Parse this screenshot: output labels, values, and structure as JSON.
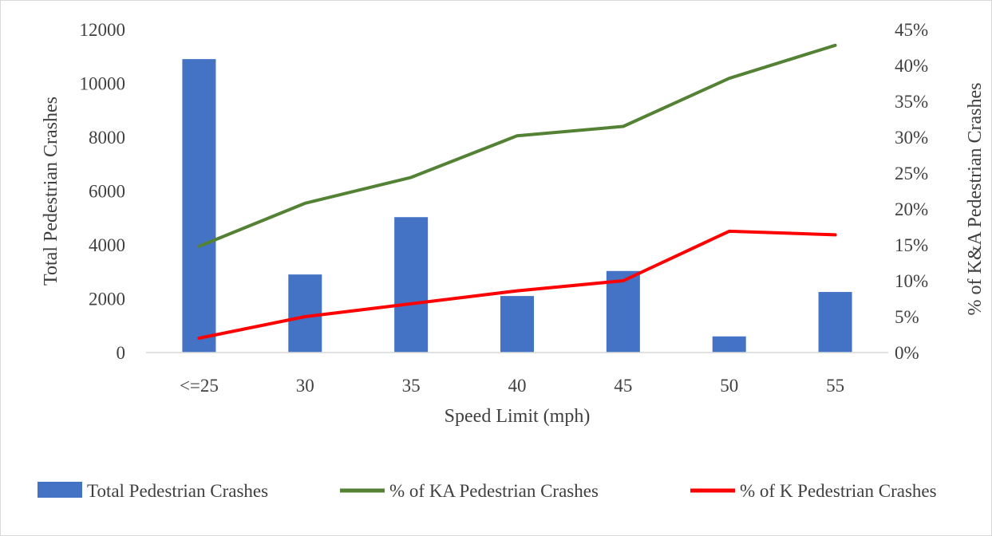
{
  "chart_data": {
    "type": "bar",
    "categories": [
      "<=25",
      "30",
      "35",
      "40",
      "45",
      "50",
      "55"
    ],
    "xlabel": "Speed Limit (mph)",
    "ylabel": "Total Pedestrian Crashes",
    "y2label": "% of K&A Pedestrian Crashes",
    "ylim": [
      0,
      12000
    ],
    "y_ticks": [
      "0",
      "2000",
      "4000",
      "6000",
      "8000",
      "10000",
      "12000"
    ],
    "y2lim": [
      0,
      45
    ],
    "y2_ticks": [
      "0%",
      "5%",
      "10%",
      "15%",
      "20%",
      "25%",
      "30%",
      "35%",
      "40%",
      "45%"
    ],
    "grid": false,
    "legend_position": "bottom",
    "series": [
      {
        "name": "Total Pedestrian Crashes",
        "type": "bar",
        "axis": "left",
        "color": "#4472C4",
        "values": [
          10900,
          2900,
          5030,
          2100,
          3030,
          600,
          2250
        ]
      },
      {
        "name": "% of KA Pedestrian Crashes",
        "type": "line",
        "axis": "right",
        "color": "#548235",
        "values": [
          14.8,
          20.8,
          24.4,
          30.2,
          31.5,
          38.2,
          42.8
        ]
      },
      {
        "name": "% of K Pedestrian Crashes",
        "type": "line",
        "axis": "right",
        "color": "#FF0000",
        "values": [
          2.0,
          5.0,
          6.8,
          8.6,
          10.0,
          16.9,
          16.4
        ]
      }
    ]
  }
}
